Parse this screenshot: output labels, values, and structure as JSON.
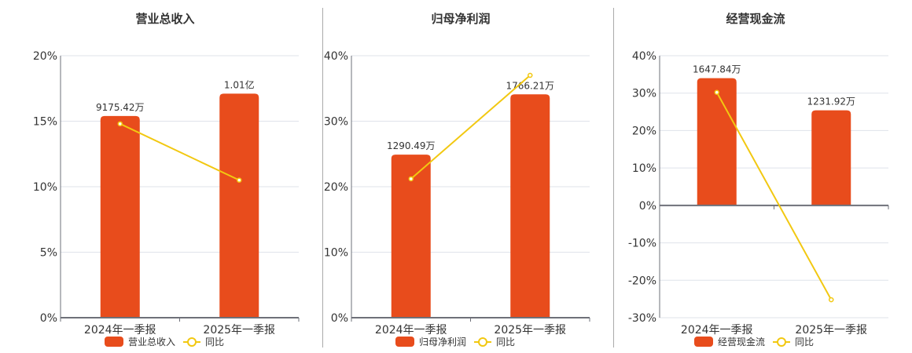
{
  "colors": {
    "bar": "#E84C1C",
    "line": "#F2C811",
    "grid": "#dfe3ea",
    "axis": "#6e7079",
    "text": "#333333"
  },
  "categories": [
    "2024年一季报",
    "2025年一季报"
  ],
  "legend_yoy_label": "同比",
  "chart_data": [
    {
      "type": "bar+line",
      "title": "营业总收入",
      "categories": [
        "2024年一季报",
        "2025年一季报"
      ],
      "ylabel": "",
      "yticks": [
        "0%",
        "5%",
        "10%",
        "15%",
        "20%"
      ],
      "ylim": [
        0,
        20
      ],
      "grid": true,
      "legend_position": "bottom",
      "series": [
        {
          "name": "营业总收入",
          "type": "bar",
          "labels": [
            "9175.42万",
            "1.01亿"
          ],
          "values_raw": [
            91754200,
            101000000
          ],
          "bar_heights_on_axis": [
            15.4,
            17.1
          ]
        },
        {
          "name": "同比",
          "type": "line",
          "values": [
            14.8,
            10.5
          ]
        }
      ]
    },
    {
      "type": "bar+line",
      "title": "归母净利润",
      "categories": [
        "2024年一季报",
        "2025年一季报"
      ],
      "ylabel": "",
      "yticks": [
        "0%",
        "10%",
        "20%",
        "30%",
        "40%"
      ],
      "ylim": [
        0,
        40
      ],
      "grid": true,
      "legend_position": "bottom",
      "series": [
        {
          "name": "归母净利润",
          "type": "bar",
          "labels": [
            "1290.49万",
            "1766.21万"
          ],
          "values_raw": [
            12904900,
            17662100
          ],
          "bar_heights_on_axis": [
            24.9,
            34.1
          ]
        },
        {
          "name": "同比",
          "type": "line",
          "values": [
            21.2,
            37.0
          ]
        }
      ]
    },
    {
      "type": "bar+line",
      "title": "经营现金流",
      "categories": [
        "2024年一季报",
        "2025年一季报"
      ],
      "ylabel": "",
      "yticks": [
        "-30%",
        "-20%",
        "-10%",
        "0%",
        "10%",
        "20%",
        "30%",
        "40%"
      ],
      "ylim": [
        -30,
        40
      ],
      "grid": true,
      "legend_position": "bottom",
      "series": [
        {
          "name": "经营现金流",
          "type": "bar",
          "labels": [
            "1647.84万",
            "1231.92万"
          ],
          "values_raw": [
            16478400,
            12319200
          ],
          "bar_heights_on_axis": [
            34.0,
            25.4
          ]
        },
        {
          "name": "同比",
          "type": "line",
          "values": [
            30.2,
            -25.2
          ]
        }
      ]
    }
  ]
}
